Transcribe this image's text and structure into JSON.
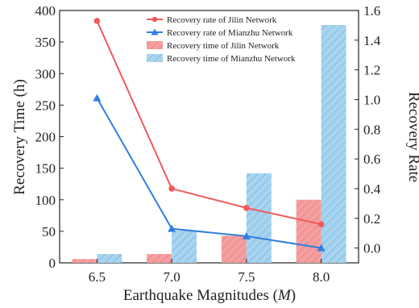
{
  "chart_data": {
    "type": "bar+line",
    "categories": [
      "6.5",
      "7.0",
      "7.5",
      "8.0"
    ],
    "xlabel_prefix": "Earthquake Magnitudes (",
    "xlabel_symbol": "M",
    "xlabel_suffix": ")",
    "ylabel_left": "Recovery Time (h)",
    "ylabel_right": "Recovery Rate",
    "ylim_left": [
      0,
      400
    ],
    "ylim_right": [
      -0.1,
      1.6
    ],
    "yticks_left": [
      "0",
      "50",
      "100",
      "150",
      "200",
      "250",
      "300",
      "350",
      "400"
    ],
    "yticks_right": [
      "0.0",
      "0.2",
      "0.4",
      "0.6",
      "0.8",
      "1.0",
      "1.2",
      "1.4",
      "1.6"
    ],
    "bars": [
      {
        "name": "Recovery time of Jilin Network",
        "values": [
          6,
          14,
          43,
          100
        ],
        "color": "#f4a0a0",
        "hatch": "#e06060"
      },
      {
        "name": "Recovery time of Mianzhu Network",
        "values": [
          14,
          51,
          142,
          377
        ],
        "color": "#a8d4ef",
        "hatch": "#4aa3d9"
      }
    ],
    "lines": [
      {
        "name": "Recovery rate of Jilin Network",
        "values": [
          1.53,
          0.4,
          0.27,
          0.16
        ],
        "color": "#f05a5a",
        "marker": "circle"
      },
      {
        "name": "Recovery rate of Mianzhu Network",
        "values": [
          1.01,
          0.13,
          0.08,
          0.0
        ],
        "color": "#2f7fe0",
        "marker": "triangle"
      }
    ],
    "legend_placement": "top-right",
    "grid": false
  }
}
